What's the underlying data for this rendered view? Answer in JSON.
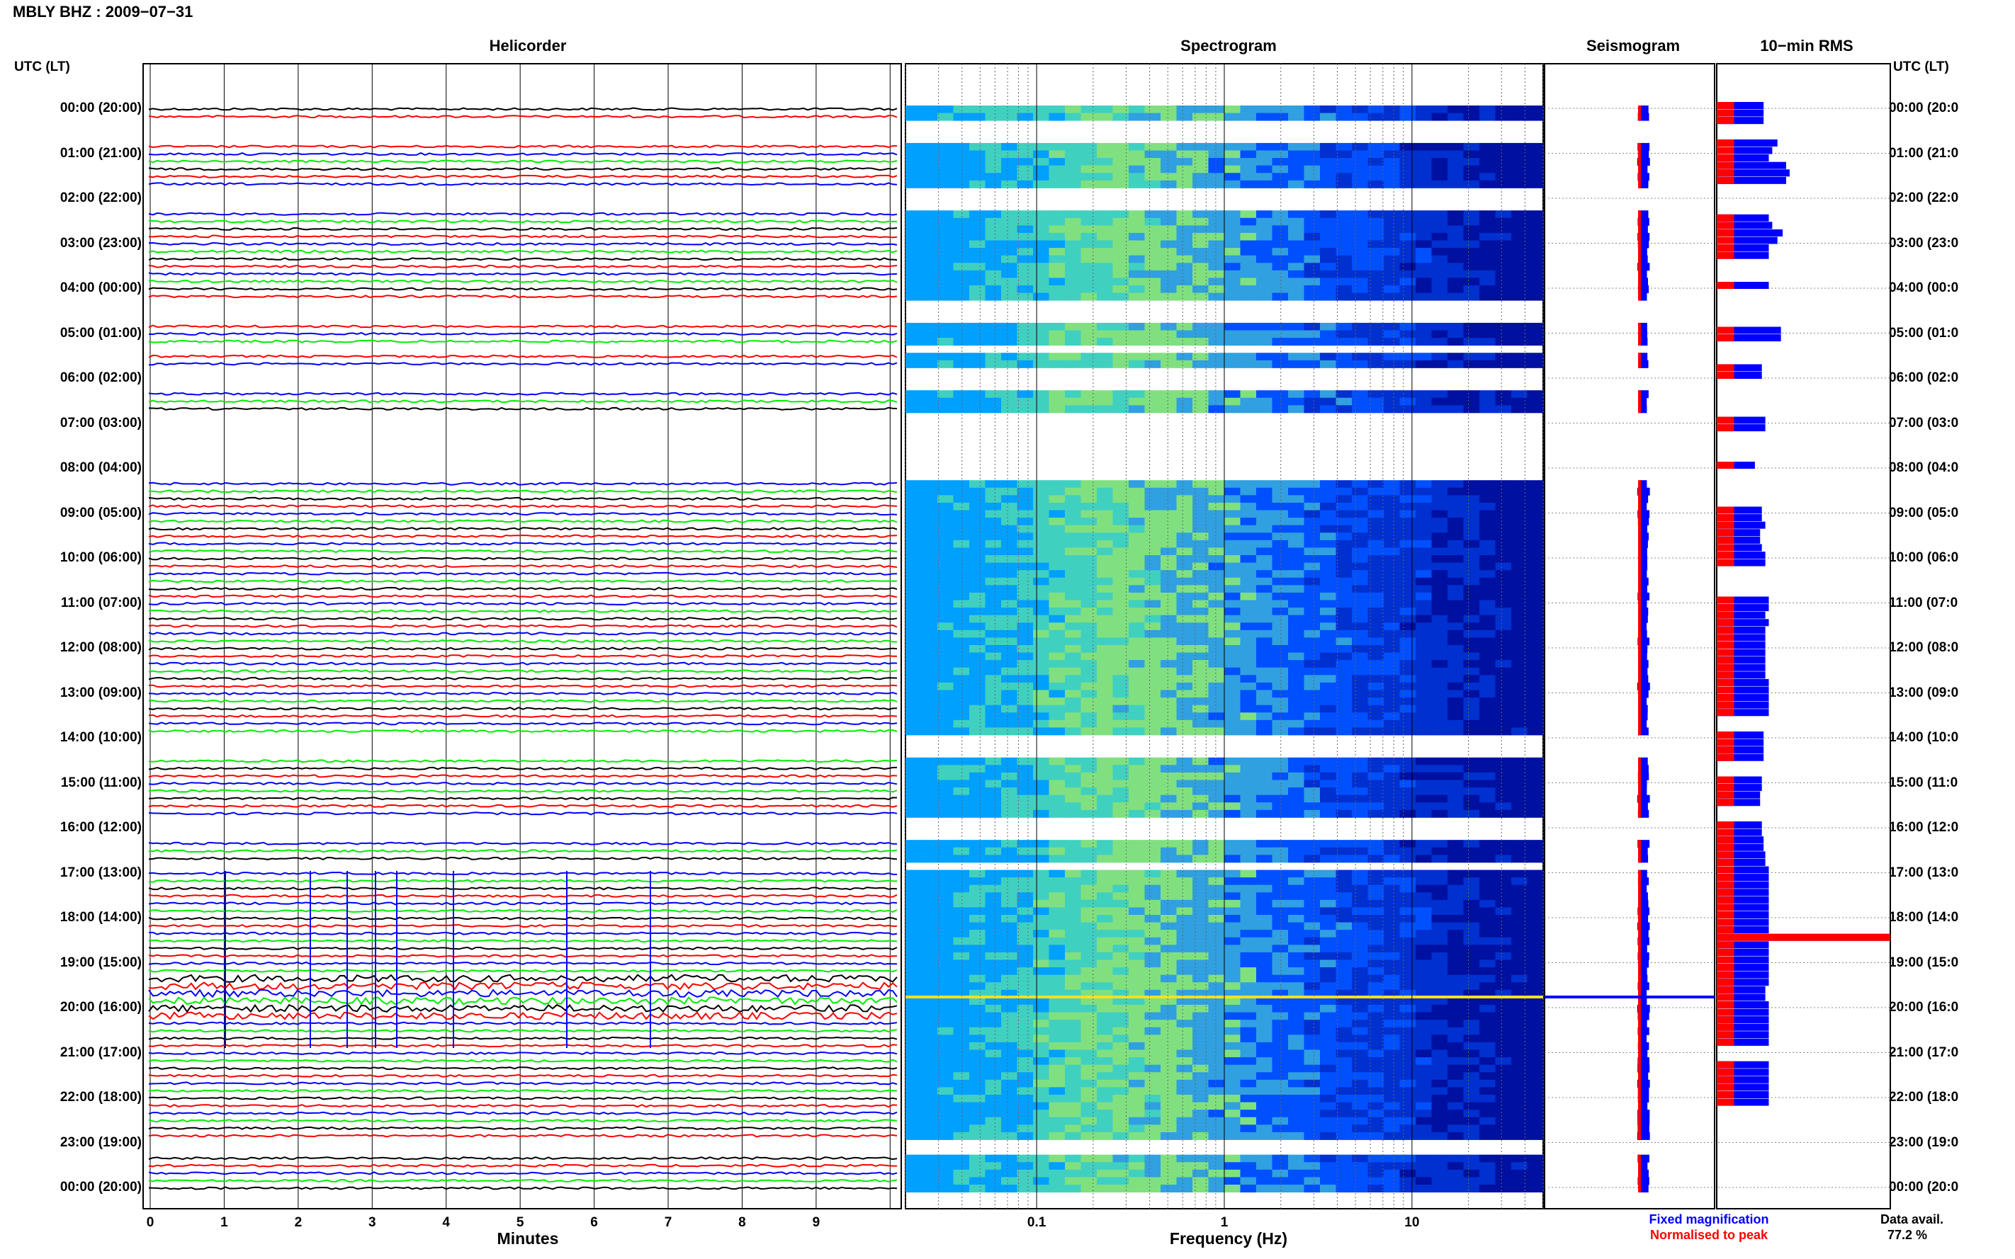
{
  "title": "MBLY BHZ : 2009−07−31",
  "panels": {
    "helicorder": "Helicorder",
    "spectrogram": "Spectrogram",
    "seismogram": "Seismogram",
    "rms": "10−min RMS"
  },
  "axis_heads": {
    "left": "UTC (LT)",
    "right": "UTC (LT)"
  },
  "hour_labels_left": [
    "00:00 (20:00)",
    "01:00 (21:00)",
    "02:00 (22:00)",
    "03:00 (23:00)",
    "04:00 (00:00)",
    "05:00 (01:00)",
    "06:00 (02:00)",
    "07:00 (03:00)",
    "08:00 (04:00)",
    "09:00 (05:00)",
    "10:00 (06:00)",
    "11:00 (07:00)",
    "12:00 (08:00)",
    "13:00 (09:00)",
    "14:00 (10:00)",
    "15:00 (11:00)",
    "16:00 (12:00)",
    "17:00 (13:00)",
    "18:00 (14:00)",
    "19:00 (15:00)",
    "20:00 (16:00)",
    "21:00 (17:00)",
    "22:00 (18:00)",
    "23:00 (19:00)",
    "00:00 (20:00)"
  ],
  "hour_labels_right": [
    "00:00 (20:0",
    "01:00 (21:0",
    "02:00 (22:0",
    "03:00 (23:0",
    "04:00 (00:0",
    "05:00 (01:0",
    "06:00 (02:0",
    "07:00 (03:0",
    "08:00 (04:0",
    "09:00 (05:0",
    "10:00 (06:0",
    "11:00 (07:0",
    "12:00 (08:0",
    "13:00 (09:0",
    "14:00 (10:0",
    "15:00 (11:0",
    "16:00 (12:0",
    "17:00 (13:0",
    "18:00 (14:0",
    "19:00 (15:0",
    "20:00 (16:0",
    "21:00 (17:0",
    "22:00 (18:0",
    "23:00 (19:0",
    "00:00 (20:0"
  ],
  "helicorder_ticks": [
    "0",
    "1",
    "2",
    "3",
    "4",
    "5",
    "6",
    "7",
    "8",
    "9"
  ],
  "spectrogram_ticks": [
    "0.1",
    "1",
    "10"
  ],
  "xlabels": {
    "helicorder": "Minutes",
    "spectrogram": "Frequency (Hz)"
  },
  "legend": {
    "fixed": "Fixed magnification",
    "normalised": "Normalised to peak"
  },
  "availability": {
    "label": "Data avail.",
    "value": "77.2 %"
  },
  "colors": {
    "trace1": "#000000",
    "trace2": "#ff0000",
    "trace3": "#0000ff",
    "trace4": "#00ee00",
    "fixed": "#0000ff",
    "normalised": "#ff0000"
  },
  "chart_data": {
    "type": "heatmap",
    "title": "MBLY BHZ : 2009−07−31",
    "xlabel": "Frequency (Hz)",
    "x_scale": "log",
    "xlim": [
      0.02,
      50
    ],
    "x_ticks": [
      0.1,
      1,
      10
    ],
    "helicorder_minutes": [
      0,
      10
    ],
    "rows_per_hour": 6,
    "data_availability_percent": 77.2,
    "gap_intervals_utc_hours": [
      [
        0.33,
        0.67
      ],
      [
        1.67,
        2.33
      ],
      [
        4.33,
        4.83
      ],
      [
        5.17,
        5.5
      ],
      [
        5.67,
        6.17
      ],
      [
        6.67,
        7.67
      ],
      [
        7.83,
        8.33
      ],
      [
        10.17,
        10.33
      ],
      [
        12.17,
        12.2
      ],
      [
        14.0,
        14.4
      ],
      [
        15.83,
        16.33
      ],
      [
        16.83,
        17.0
      ],
      [
        17.67,
        17.7
      ],
      [
        21.67,
        21.7
      ],
      [
        23.0,
        23.33
      ]
    ],
    "rms_bar_lengths_10min": {
      "fixed": [
        0.27,
        0.27,
        0.27,
        0,
        0,
        0.35,
        0.32,
        0.3,
        0.4,
        0.42,
        0.4,
        0,
        0,
        0,
        0,
        0.3,
        0.32,
        0.38,
        0.35,
        0.3,
        0.3,
        0,
        0,
        0,
        0.3,
        0,
        0,
        0,
        0,
        0,
        0.37,
        0.37,
        0,
        0,
        0,
        0.26,
        0.26,
        0,
        0,
        0,
        0,
        0,
        0.28,
        0.28,
        0,
        0,
        0,
        0,
        0.22,
        0.0,
        0,
        0,
        0,
        0,
        0.26,
        0.26,
        0.28,
        0.25,
        0.25,
        0.26,
        0.28,
        0.28,
        0,
        0,
        0,
        0,
        0.3,
        0.3,
        0.28,
        0.3,
        0.28,
        0.28,
        0.28,
        0.28,
        0.28,
        0.28,
        0.28,
        0.3,
        0.3,
        0.3,
        0.3,
        0.3,
        0,
        0,
        0.27,
        0.27,
        0.27,
        0.27,
        0,
        0,
        0.26,
        0.26,
        0.25,
        0.25,
        0,
        0,
        0.26,
        0.26,
        0.27,
        0.27,
        0.28,
        0.28,
        0.3,
        0.3,
        0.3,
        0.3,
        0.3,
        0.3,
        0.3,
        0.3,
        0.3,
        1.0,
        0.3,
        0.3,
        0.3,
        0.3,
        0.3,
        0.3,
        0.28,
        0.28,
        0.3,
        0.3,
        0.3,
        0.3,
        0.3,
        0.3,
        0,
        0,
        0.3,
        0.3,
        0.3,
        0.3,
        0.3,
        0.3
      ],
      "normalised": [
        0.1,
        0.1,
        0.1,
        0,
        0,
        0.1,
        0.1,
        0.1,
        0.1,
        0.1,
        0.1,
        0,
        0,
        0,
        0,
        0.1,
        0.1,
        0.1,
        0.1,
        0.1,
        0.1,
        0,
        0,
        0,
        0.1,
        0,
        0,
        0,
        0,
        0,
        0.1,
        0.1,
        0,
        0,
        0,
        0.1,
        0.1,
        0,
        0,
        0,
        0,
        0,
        0.1,
        0.1,
        0,
        0,
        0,
        0,
        0.1,
        0.0,
        0,
        0,
        0,
        0,
        0.1,
        0.1,
        0.1,
        0.1,
        0.1,
        0.1,
        0.1,
        0.1,
        0,
        0,
        0,
        0,
        0.1,
        0.1,
        0.1,
        0.1,
        0.1,
        0.1,
        0.1,
        0.1,
        0.1,
        0.1,
        0.1,
        0.1,
        0.1,
        0.1,
        0.1,
        0.1,
        0,
        0,
        0.1,
        0.1,
        0.1,
        0.1,
        0,
        0,
        0.1,
        0.1,
        0.1,
        0.1,
        0,
        0,
        0.1,
        0.1,
        0.1,
        0.1,
        0.1,
        0.1,
        0.1,
        0.1,
        0.1,
        0.1,
        0.1,
        0.1,
        0.1,
        0.1,
        0.1,
        1.0,
        0.1,
        0.1,
        0.1,
        0.1,
        0.1,
        0.1,
        0.1,
        0.1,
        0.1,
        0.1,
        0.1,
        0.1,
        0.1,
        0.1,
        0,
        0,
        0.1,
        0.1,
        0.1,
        0.1,
        0.1,
        0.1
      ]
    }
  }
}
